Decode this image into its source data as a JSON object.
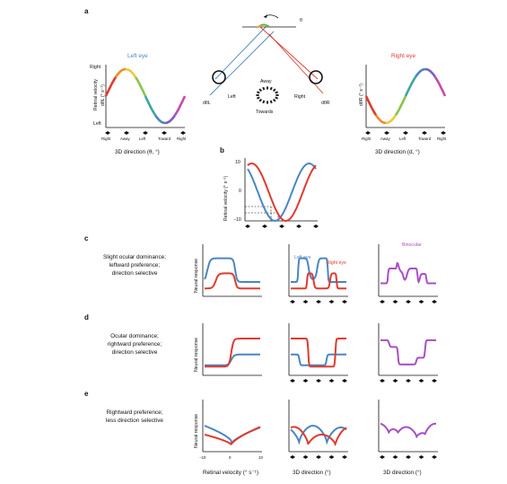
{
  "colors": {
    "left_eye": "#e03a2e",
    "right_eye": "#4a86c3",
    "binocular": "#a94fc4",
    "axis": "#111111"
  },
  "panels": {
    "a": "a",
    "b": "b",
    "c": "c",
    "d": "d",
    "e": "e"
  },
  "panel_a": {
    "left_title": "Left eye",
    "right_title": "Right eye",
    "left_y_top": "Right",
    "left_y_bottom": "Left",
    "left_y_label": "Retinal velocity",
    "left_y_sym": "dθL (° s⁻¹)",
    "right_y_sym": "dθR (° s⁻¹)",
    "xlabel": "3D direction (θ, °)",
    "xlabel_right": "3D direction (d, °)",
    "dir_ticks": [
      "Right",
      "Away",
      "Left",
      "Toward",
      "Right"
    ],
    "theta": "θ",
    "d_theta_L": "dθL",
    "d_theta_R": "dθR",
    "away": "Away",
    "towards": "Towards",
    "left": "Left",
    "right": "Right"
  },
  "panel_b": {
    "ylabel": "Retinal velocity (° s⁻¹)",
    "yticks": [
      "10",
      "0",
      "−10"
    ]
  },
  "rows": [
    {
      "id": "c",
      "desc": [
        "Slight ocular dominance;",
        "leftward preference;",
        "direction selective"
      ],
      "annotations": {
        "left_eye": "Left eye",
        "right_eye": "Right eye",
        "binocular": "Binocular"
      }
    },
    {
      "id": "d",
      "desc": [
        "Ocular dominance;",
        "rightward preference;",
        "direction selective"
      ]
    },
    {
      "id": "e",
      "desc": [
        "Rightward preference;",
        "less direction selective"
      ]
    }
  ],
  "ylabel_neural": "Neural response",
  "xlabel_retinal": "Retinal velocity (° s⁻¹)",
  "xlabel_3d": "3D direction (°)",
  "xticks_retinal": [
    "−10",
    "0",
    "10"
  ]
}
